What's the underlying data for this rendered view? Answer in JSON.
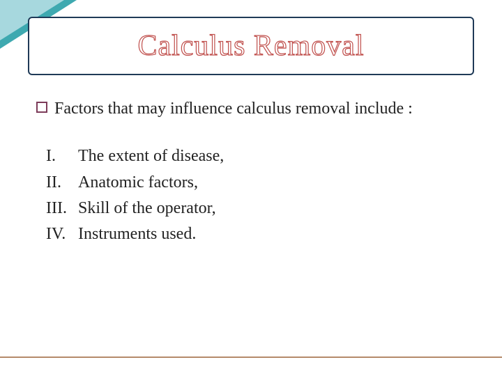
{
  "colors": {
    "accent_teal": "#3ea9b0",
    "accent_teal_light": "#a7d8de",
    "title_outline": "#c0504d",
    "border_navy": "#1f3a57",
    "bullet_plum": "#7d3c5a",
    "text": "#222222",
    "rule": "#b48a6a",
    "white": "#ffffff"
  },
  "title": "Calculus Removal",
  "lead": "Factors that may influence calculus removal include :",
  "items": [
    {
      "num": "I.",
      "text": "The extent of disease,"
    },
    {
      "num": "II.",
      "text": "Anatomic factors,"
    },
    {
      "num": "III.",
      "text": "Skill of the operator,"
    },
    {
      "num": "IV.",
      "text": "Instruments used."
    }
  ],
  "typography": {
    "title_fontsize": 42,
    "body_fontsize": 24
  }
}
